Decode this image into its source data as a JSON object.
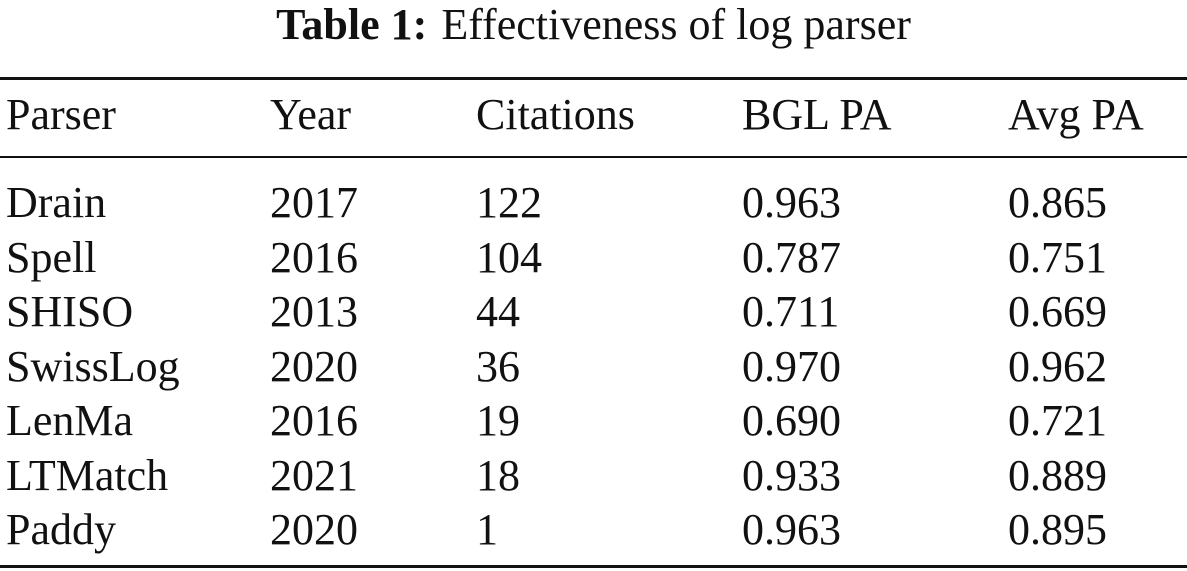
{
  "caption": {
    "label": "Table 1:",
    "text": "Effectiveness of log parser"
  },
  "table": {
    "columns": [
      "Parser",
      "Year",
      "Citations",
      "BGL PA",
      "Avg PA"
    ],
    "rows": [
      [
        "Drain",
        "2017",
        "122",
        "0.963",
        "0.865"
      ],
      [
        "Spell",
        "2016",
        "104",
        "0.787",
        "0.751"
      ],
      [
        "SHISO",
        "2013",
        "44",
        "0.711",
        "0.669"
      ],
      [
        "SwissLog",
        "2020",
        "36",
        "0.970",
        "0.962"
      ],
      [
        "LenMa",
        "2016",
        "19",
        "0.690",
        "0.721"
      ],
      [
        "LTMatch",
        "2021",
        "18",
        "0.933",
        "0.889"
      ],
      [
        "Paddy",
        "2020",
        "1",
        "0.963",
        "0.895"
      ]
    ]
  }
}
